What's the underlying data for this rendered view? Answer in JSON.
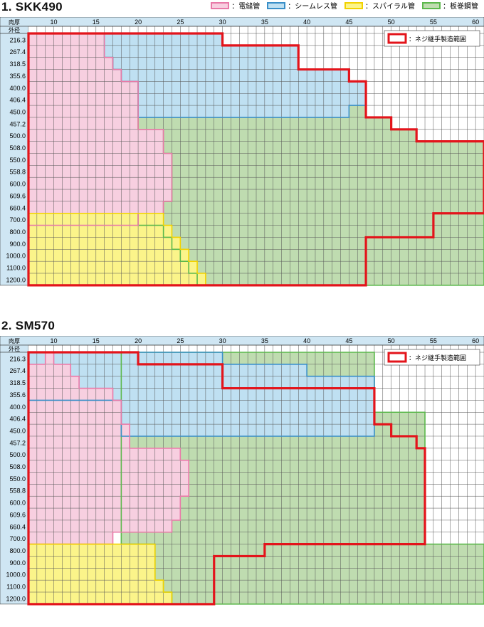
{
  "legend": [
    {
      "label": "：電縫管",
      "fill": "#f7cfe0",
      "stroke": "#e87aa8"
    },
    {
      "label": "：シームレス管",
      "fill": "#bfe0f2",
      "stroke": "#3a8fc8"
    },
    {
      "label": "：スパイラル管",
      "fill": "#fbf48a",
      "stroke": "#f2d200"
    },
    {
      "label": "：板巻鋼管",
      "fill": "#bfdcb0",
      "stroke": "#5cb84c"
    }
  ],
  "screw_legend": "：ネジ継手製造範囲",
  "corner": {
    "thickness": "肉厚",
    "diameter": "外径"
  },
  "chart_data": [
    {
      "type": "heatmap",
      "title": "1. SKK490",
      "xlabel": "肉厚",
      "ylabel": "外径",
      "x_ticks": [
        10,
        15,
        20,
        25,
        30,
        35,
        40,
        45,
        50,
        55,
        60
      ],
      "x_range": [
        7,
        61
      ],
      "y_labels": [
        "216.3",
        "267.4",
        "318.5",
        "355.6",
        "400.0",
        "406.4",
        "450.0",
        "457.2",
        "500.0",
        "508.0",
        "550.0",
        "558.8",
        "600.0",
        "609.6",
        "660.4",
        "700.0",
        "800.0",
        "900.0",
        "1000.0",
        "1100.0",
        "1200.0"
      ],
      "regions": [
        {
          "name": "電縫管",
          "rows": [
            [
              7,
              16
            ],
            [
              7,
              16
            ],
            [
              7,
              17
            ],
            [
              7,
              18
            ],
            [
              7,
              20
            ],
            [
              7,
              20
            ],
            [
              7,
              20
            ],
            [
              7,
              20
            ],
            [
              7,
              23
            ],
            [
              7,
              23
            ],
            [
              7,
              24
            ],
            [
              7,
              24
            ],
            [
              7,
              24
            ],
            [
              7,
              24
            ],
            [
              7,
              23
            ],
            [
              7,
              20
            ]
          ]
        },
        {
          "name": "シームレス管",
          "rows": [
            [
              16,
              30
            ],
            [
              16,
              39
            ],
            [
              17,
              39
            ],
            [
              18,
              45
            ],
            [
              20,
              47
            ],
            [
              20,
              47
            ],
            [
              20,
              45
            ]
          ]
        },
        {
          "name": "スパイラル管",
          "rows": [
            [
              7,
              23
            ],
            [
              7,
              24
            ],
            [
              7,
              25
            ],
            [
              7,
              26
            ],
            [
              7,
              27
            ],
            [
              7,
              28
            ]
          ]
        },
        {
          "name": "板巻鋼管",
          "rows": [
            [
              16,
              30
            ],
            [
              16,
              39
            ],
            [
              17,
              39
            ],
            [
              18,
              45
            ],
            [
              20,
              47
            ],
            [
              20,
              47
            ],
            [
              20,
              47
            ],
            [
              20,
              50
            ],
            [
              23,
              53
            ],
            [
              23,
              61
            ],
            [
              24,
              61
            ],
            [
              24,
              61
            ],
            [
              24,
              61
            ],
            [
              24,
              61
            ],
            [
              23,
              61
            ],
            [
              20,
              61
            ],
            [
              23,
              61
            ],
            [
              24,
              61
            ],
            [
              25,
              61
            ],
            [
              26,
              61
            ],
            [
              27,
              61
            ]
          ]
        },
        {
          "name": "ネジ継手製造範囲",
          "rows": [
            [
              7,
              30
            ],
            [
              7,
              39
            ],
            [
              7,
              39
            ],
            [
              7,
              45
            ],
            [
              7,
              47
            ],
            [
              7,
              47
            ],
            [
              7,
              47
            ],
            [
              7,
              50
            ],
            [
              7,
              53
            ],
            [
              7,
              61
            ],
            [
              7,
              61
            ],
            [
              7,
              61
            ],
            [
              7,
              61
            ],
            [
              7,
              61
            ],
            [
              7,
              61
            ],
            [
              7,
              55
            ],
            [
              7,
              55
            ],
            [
              7,
              47
            ],
            [
              7,
              47
            ],
            [
              7,
              47
            ],
            [
              7,
              47
            ]
          ]
        }
      ]
    },
    {
      "type": "heatmap",
      "title": "2. SM570",
      "xlabel": "肉厚",
      "ylabel": "外径",
      "x_ticks": [
        10,
        15,
        20,
        25,
        30,
        35,
        40,
        45,
        50,
        55,
        60
      ],
      "x_range": [
        7,
        61
      ],
      "y_labels": [
        "216.3",
        "267.4",
        "318.5",
        "355.6",
        "400.0",
        "406.4",
        "450.0",
        "457.2",
        "500.0",
        "508.0",
        "550.0",
        "558.8",
        "600.0",
        "609.6",
        "660.4",
        "700.0",
        "800.0",
        "900.0",
        "1000.0",
        "1100.0",
        "1200.0"
      ],
      "regions": [
        {
          "name": "電縫管",
          "rows": [
            [
              9,
              10
            ],
            [
              7,
              12
            ],
            [
              7,
              13
            ],
            [
              7,
              17
            ],
            [
              7,
              18
            ],
            [
              7,
              18
            ],
            [
              7,
              19
            ],
            [
              7,
              19
            ],
            [
              7,
              25
            ],
            [
              7,
              26
            ],
            [
              7,
              26
            ],
            [
              7,
              26
            ],
            [
              7,
              25
            ],
            [
              7,
              25
            ],
            [
              7,
              24
            ],
            [
              7,
              17
            ]
          ]
        },
        {
          "name": "シームレス管",
          "rows": [
            [
              7,
              30
            ],
            [
              7,
              40
            ],
            [
              7,
              48
            ],
            [
              7,
              48
            ],
            [
              18,
              48
            ],
            [
              18,
              48
            ],
            [
              18,
              48
            ]
          ]
        },
        {
          "name": "スパイラル管",
          "rows": [
            [
              7,
              22
            ],
            [
              7,
              22
            ],
            [
              7,
              22
            ],
            [
              7,
              23
            ],
            [
              7,
              24
            ]
          ]
        },
        {
          "name": "板巻鋼管",
          "rows": [
            [
              18,
              48
            ],
            [
              18,
              48
            ],
            [
              18,
              48
            ],
            [
              18,
              48
            ],
            [
              18,
              48
            ],
            [
              18,
              54
            ],
            [
              18,
              54
            ],
            [
              18,
              54
            ],
            [
              18,
              54
            ],
            [
              18,
              54
            ],
            [
              18,
              54
            ],
            [
              18,
              54
            ],
            [
              18,
              54
            ],
            [
              18,
              54
            ],
            [
              18,
              54
            ],
            [
              18,
              54
            ],
            [
              22,
              61
            ],
            [
              22,
              61
            ],
            [
              22,
              61
            ],
            [
              23,
              61
            ],
            [
              24,
              61
            ]
          ]
        },
        {
          "name": "ネジ継手製造範囲",
          "rows": [
            [
              7,
              20
            ],
            [
              7,
              30
            ],
            [
              7,
              30
            ],
            [
              7,
              48
            ],
            [
              7,
              48
            ],
            [
              7,
              48
            ],
            [
              7,
              50
            ],
            [
              7,
              53
            ],
            [
              7,
              54
            ],
            [
              7,
              54
            ],
            [
              7,
              54
            ],
            [
              7,
              54
            ],
            [
              7,
              54
            ],
            [
              7,
              54
            ],
            [
              7,
              54
            ],
            [
              7,
              54
            ],
            [
              7,
              35
            ],
            [
              7,
              29
            ],
            [
              7,
              29
            ],
            [
              7,
              29
            ],
            [
              7,
              29
            ]
          ]
        }
      ]
    }
  ]
}
